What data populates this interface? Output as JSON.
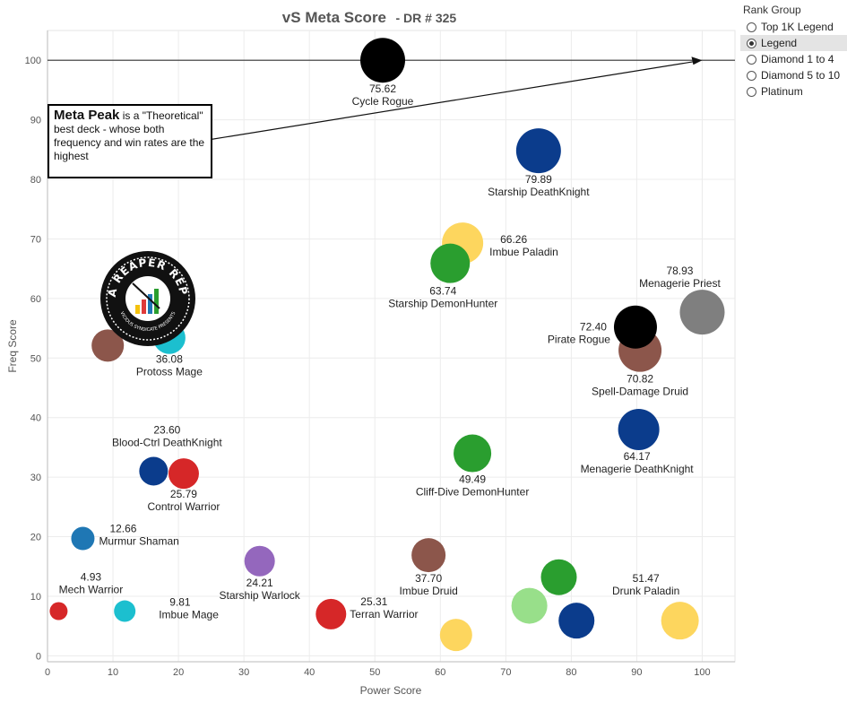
{
  "chart_data": {
    "type": "scatter",
    "title": "vS Meta Score",
    "subtitle": "- DR # 325",
    "xlabel": "Power Score",
    "ylabel": "Freq Score",
    "xlim": [
      0,
      105
    ],
    "ylim": [
      -1,
      105
    ],
    "xticks": [
      0,
      10,
      20,
      30,
      40,
      50,
      60,
      70,
      80,
      90,
      100
    ],
    "yticks": [
      0,
      10,
      20,
      30,
      40,
      50,
      60,
      70,
      80,
      90,
      100
    ],
    "grid": true,
    "reference_line_y": 100,
    "points": [
      {
        "name": "Cycle Rogue",
        "score": "75.62",
        "x": 51.2,
        "y": 100,
        "r": 25,
        "color": "#000000"
      },
      {
        "name": "Starship DeathKnight",
        "score": "79.89",
        "x": 75.0,
        "y": 84.8,
        "r": 25,
        "color": "#0b3c8c"
      },
      {
        "name": "Imbue Paladin",
        "score": "66.26",
        "x": 63.4,
        "y": 69.3,
        "r": 23,
        "color": "#fdd65e"
      },
      {
        "name": "Starship DemonHunter",
        "score": "63.74",
        "x": 61.5,
        "y": 65.9,
        "r": 22,
        "color": "#2a9e2f"
      },
      {
        "name": "Menagerie Priest",
        "score": "78.93",
        "x": 100.0,
        "y": 57.7,
        "r": 25,
        "color": "#7f7f7f"
      },
      {
        "name": "Spell-Damage Druid",
        "score": "70.82",
        "x": 90.5,
        "y": 51.3,
        "r": 24,
        "color": "#8c564b"
      },
      {
        "name": "Pirate Rogue",
        "score": "72.40",
        "x": 89.8,
        "y": 55.2,
        "r": 24,
        "color": "#000000"
      },
      {
        "name": "Protoss Mage",
        "score": "36.08",
        "x": 18.6,
        "y": 53.4,
        "r": 18,
        "color": "#1cbfcf"
      },
      {
        "name": "",
        "score": "",
        "x": 9.2,
        "y": 52.1,
        "r": 18,
        "color": "#8c564b"
      },
      {
        "name": "Menagerie DeathKnight",
        "score": "64.17",
        "x": 90.3,
        "y": 38.0,
        "r": 23,
        "color": "#0b3c8c"
      },
      {
        "name": "Cliff-Dive DemonHunter",
        "score": "49.49",
        "x": 64.9,
        "y": 34.0,
        "r": 21,
        "color": "#2a9e2f"
      },
      {
        "name": "Blood-Ctrl DeathKnight",
        "score": "23.60",
        "x": 16.2,
        "y": 31.0,
        "r": 16,
        "color": "#0b3c8c"
      },
      {
        "name": "Control Warrior",
        "score": "25.79",
        "x": 20.8,
        "y": 30.6,
        "r": 17,
        "color": "#d62728"
      },
      {
        "name": "Murmur Shaman",
        "score": "12.66",
        "x": 5.4,
        "y": 19.7,
        "r": 13,
        "color": "#1f77b4"
      },
      {
        "name": "Starship Warlock",
        "score": "24.21",
        "x": 32.4,
        "y": 15.9,
        "r": 17,
        "color": "#9467bd"
      },
      {
        "name": "Imbue Druid",
        "score": "37.70",
        "x": 58.2,
        "y": 16.9,
        "r": 19,
        "color": "#8c564b"
      },
      {
        "name": "",
        "score": "",
        "x": 78.1,
        "y": 13.2,
        "r": 20,
        "color": "#2a9e2f"
      },
      {
        "name": "Drunk Paladin",
        "score": "51.47",
        "x": 96.6,
        "y": 5.9,
        "r": 21,
        "color": "#fdd65e"
      },
      {
        "name": "Mech Warrior",
        "score": "4.93",
        "x": 1.7,
        "y": 7.5,
        "r": 10,
        "color": "#d62728"
      },
      {
        "name": "Imbue Mage",
        "score": "9.81",
        "x": 11.8,
        "y": 7.5,
        "r": 12,
        "color": "#1cbfcf"
      },
      {
        "name": "Terran Warrior",
        "score": "25.31",
        "x": 43.3,
        "y": 7.0,
        "r": 17,
        "color": "#d62728"
      },
      {
        "name": "",
        "score": "",
        "x": 62.4,
        "y": 3.5,
        "r": 18,
        "color": "#fdd65e"
      },
      {
        "name": "",
        "score": "",
        "x": 73.6,
        "y": 8.4,
        "r": 20,
        "color": "#98df8a"
      },
      {
        "name": "",
        "score": "",
        "x": 80.8,
        "y": 5.9,
        "r": 20,
        "color": "#0b3c8c"
      }
    ]
  },
  "legend": {
    "title": "Rank Group",
    "items": [
      {
        "label": "Top 1K Legend",
        "selected": false
      },
      {
        "label": "Legend",
        "selected": true
      },
      {
        "label": "Diamond 1 to 4",
        "selected": false
      },
      {
        "label": "Diamond 5 to 10",
        "selected": false
      },
      {
        "label": "Platinum",
        "selected": false
      }
    ]
  },
  "annotation": {
    "bold": "Meta Peak",
    "rest": " is a \"Theoretical\" best deck - whose both frequency and win rates are the highest"
  },
  "logo": {
    "top_text": "DATA REAPER REPORT",
    "bottom_text": "VICIOUS SYNDICATE PRESENTS"
  }
}
